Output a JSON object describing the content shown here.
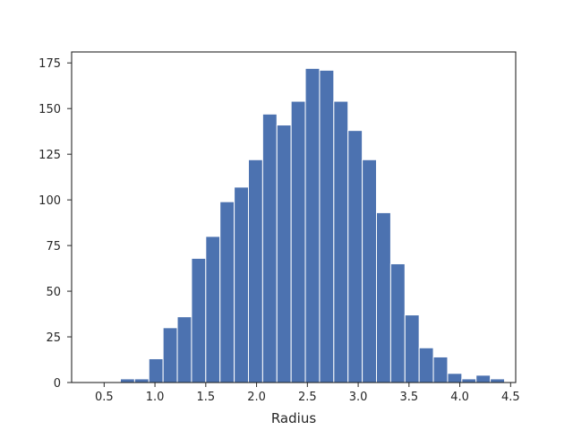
{
  "chart_data": {
    "type": "bar",
    "title": "",
    "xlabel": "Radius",
    "ylabel": "",
    "xlim": [
      0.18,
      4.55
    ],
    "ylim": [
      0,
      181
    ],
    "xticks": [
      "0.5",
      "1.0",
      "1.5",
      "2.0",
      "2.5",
      "3.0",
      "3.5",
      "4.0",
      "4.5"
    ],
    "yticks": [
      "0",
      "25",
      "50",
      "75",
      "100",
      "125",
      "150",
      "175"
    ],
    "grid": false,
    "bar_color": "#4c72b0",
    "bins": [
      {
        "x0": 0.66,
        "x1": 0.8,
        "count": 2
      },
      {
        "x0": 0.8,
        "x1": 0.94,
        "count": 2
      },
      {
        "x0": 0.94,
        "x1": 1.08,
        "count": 13
      },
      {
        "x0": 1.08,
        "x1": 1.22,
        "count": 30
      },
      {
        "x0": 1.22,
        "x1": 1.36,
        "count": 36
      },
      {
        "x0": 1.36,
        "x1": 1.5,
        "count": 68
      },
      {
        "x0": 1.5,
        "x1": 1.64,
        "count": 80
      },
      {
        "x0": 1.64,
        "x1": 1.78,
        "count": 99
      },
      {
        "x0": 1.78,
        "x1": 1.92,
        "count": 107
      },
      {
        "x0": 1.92,
        "x1": 2.06,
        "count": 122
      },
      {
        "x0": 2.06,
        "x1": 2.2,
        "count": 147
      },
      {
        "x0": 2.2,
        "x1": 2.34,
        "count": 141
      },
      {
        "x0": 2.34,
        "x1": 2.48,
        "count": 154
      },
      {
        "x0": 2.48,
        "x1": 2.62,
        "count": 172
      },
      {
        "x0": 2.62,
        "x1": 2.76,
        "count": 171
      },
      {
        "x0": 2.76,
        "x1": 2.9,
        "count": 154
      },
      {
        "x0": 2.9,
        "x1": 3.04,
        "count": 138
      },
      {
        "x0": 3.04,
        "x1": 3.18,
        "count": 122
      },
      {
        "x0": 3.18,
        "x1": 3.32,
        "count": 93
      },
      {
        "x0": 3.32,
        "x1": 3.46,
        "count": 65
      },
      {
        "x0": 3.46,
        "x1": 3.6,
        "count": 37
      },
      {
        "x0": 3.6,
        "x1": 3.74,
        "count": 19
      },
      {
        "x0": 3.74,
        "x1": 3.88,
        "count": 14
      },
      {
        "x0": 3.88,
        "x1": 4.02,
        "count": 5
      },
      {
        "x0": 4.02,
        "x1": 4.16,
        "count": 2
      },
      {
        "x0": 4.16,
        "x1": 4.3,
        "count": 4
      },
      {
        "x0": 4.3,
        "x1": 4.44,
        "count": 2
      }
    ]
  }
}
